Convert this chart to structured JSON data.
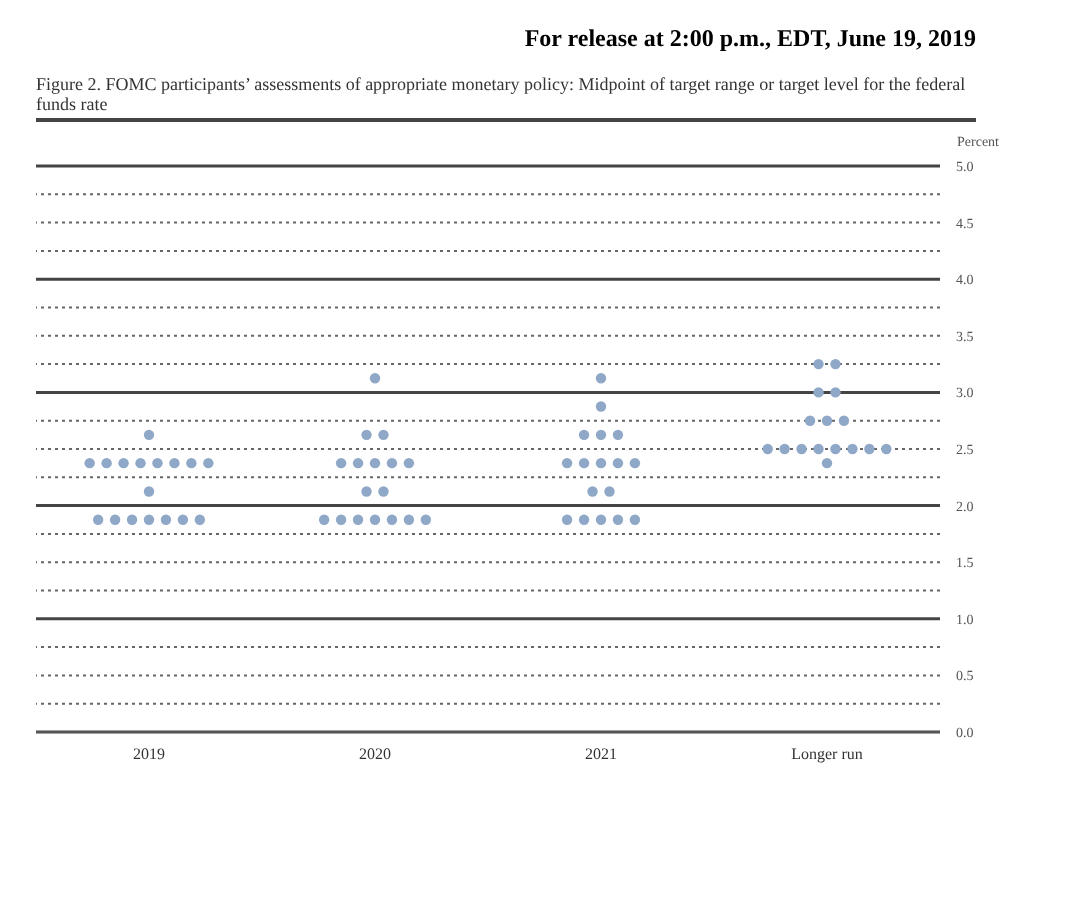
{
  "chart_data": {
    "type": "scatter",
    "title": "Figure 2. FOMC participants’ assessments of appropriate monetary policy: Midpoint of target range or target level for the federal funds rate",
    "annotations": [
      "For release at 2:00 p.m., EDT, June 19, 2019"
    ],
    "ylabel": "Percent",
    "categories": [
      "2019",
      "2020",
      "2021",
      "Longer run"
    ],
    "series": [
      {
        "color": "#8fa8c8",
        "values": [
          2.625,
          3.125,
          3.125,
          3.25
        ]
      },
      {
        "color": "#8fa8c8",
        "values": [
          2.375,
          2.625,
          2.875,
          3.25
        ]
      },
      {
        "color": "#8fa8c8",
        "values": [
          2.375,
          2.625,
          2.625,
          3.0
        ]
      },
      {
        "color": "#8fa8c8",
        "values": [
          2.375,
          2.375,
          2.625,
          3.0
        ]
      },
      {
        "color": "#8fa8c8",
        "values": [
          2.375,
          2.375,
          2.625,
          2.75
        ]
      },
      {
        "color": "#8fa8c8",
        "values": [
          2.375,
          2.375,
          2.375,
          2.75
        ]
      },
      {
        "color": "#8fa8c8",
        "values": [
          2.375,
          2.375,
          2.375,
          2.75
        ]
      },
      {
        "color": "#8fa8c8",
        "values": [
          2.375,
          2.375,
          2.375,
          2.5
        ]
      },
      {
        "color": "#8fa8c8",
        "values": [
          2.375,
          2.125,
          2.375,
          2.5
        ]
      },
      {
        "color": "#8fa8c8",
        "values": [
          2.125,
          2.125,
          2.375,
          2.5
        ]
      },
      {
        "color": "#8fa8c8",
        "values": [
          1.875,
          1.875,
          2.125,
          2.5
        ]
      },
      {
        "color": "#8fa8c8",
        "values": [
          1.875,
          1.875,
          2.125,
          2.5
        ]
      },
      {
        "color": "#8fa8c8",
        "values": [
          1.875,
          1.875,
          1.875,
          2.5
        ]
      },
      {
        "color": "#8fa8c8",
        "values": [
          1.875,
          1.875,
          1.875,
          2.5
        ]
      },
      {
        "color": "#8fa8c8",
        "values": [
          1.875,
          1.875,
          1.875,
          2.5
        ]
      },
      {
        "color": "#8fa8c8",
        "values": [
          1.875,
          1.875,
          1.875,
          2.375
        ]
      },
      {
        "color": "#8fa8c8",
        "values": [
          1.875,
          1.875,
          1.875,
          null
        ]
      }
    ],
    "ylim": [
      0,
      5
    ],
    "yticks": [
      {
        "value": 0,
        "label": "0.0"
      },
      {
        "value": 0.25,
        "label": null
      },
      {
        "value": 0.5,
        "label": "0.5"
      },
      {
        "value": 0.75,
        "label": null
      },
      {
        "value": 1,
        "label": "1.0"
      },
      {
        "value": 1.25,
        "label": null
      },
      {
        "value": 1.5,
        "label": "1.5"
      },
      {
        "value": 1.75,
        "label": null
      },
      {
        "value": 2,
        "label": "2.0"
      },
      {
        "value": 2.25,
        "label": null
      },
      {
        "value": 2.5,
        "label": "2.5"
      },
      {
        "value": 2.75,
        "label": null
      },
      {
        "value": 3,
        "label": "3.0"
      },
      {
        "value": 3.25,
        "label": null
      },
      {
        "value": 3.5,
        "label": "3.5"
      },
      {
        "value": 3.75,
        "label": null
      },
      {
        "value": 4,
        "label": "4.0"
      },
      {
        "value": 4.25,
        "label": null
      },
      {
        "value": 4.5,
        "label": "4.5"
      },
      {
        "value": 4.75,
        "label": null
      },
      {
        "value": 5,
        "label": "5.0"
      }
    ],
    "grid": "y",
    "marker": "circle"
  }
}
